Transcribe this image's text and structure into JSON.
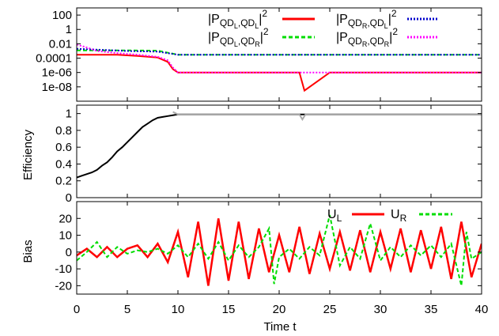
{
  "chart_data": [
    {
      "type": "line",
      "panel": "top",
      "yscale": "log",
      "xlim": [
        0,
        40
      ],
      "ylim": [
        1e-10,
        1000
      ],
      "yticks": [
        {
          "v": 100,
          "label": "100"
        },
        {
          "v": 1,
          "label": "1"
        },
        {
          "v": 0.01,
          "label": "0.01"
        },
        {
          "v": 0.0001,
          "label": "0.0001"
        },
        {
          "v": 1e-06,
          "label": "1e-06"
        },
        {
          "v": 1e-08,
          "label": "1e-08"
        }
      ],
      "legend_position": "top",
      "series": [
        {
          "name": "|P_QDL,QDL|^2",
          "color": "#ff0000",
          "style": "solid",
          "x": [
            0,
            2,
            4,
            6,
            8,
            9,
            9.5,
            10,
            12,
            16,
            20,
            22,
            22.5,
            25,
            30,
            35,
            40
          ],
          "y": [
            0.0003,
            0.0003,
            0.0003,
            0.0002,
            0.00012,
            3e-05,
            3e-06,
            1e-06,
            1e-06,
            1e-06,
            1e-06,
            1e-06,
            3e-09,
            1e-06,
            1e-06,
            1e-06,
            1e-06
          ]
        },
        {
          "name": "|P_QDL,QDR|^2",
          "color": "#00dd00",
          "style": "dashed",
          "x": [
            0,
            5,
            8,
            10,
            15,
            20,
            25,
            30,
            35,
            40
          ],
          "y": [
            0.0012,
            0.0012,
            0.0011,
            0.0003,
            0.0003,
            0.0003,
            0.0003,
            0.0003,
            0.0003,
            0.0003
          ]
        },
        {
          "name": "|P_QDR,QDL|^2",
          "color": "#0000cc",
          "style": "dotted",
          "x": [
            0,
            5,
            8,
            10,
            15,
            20,
            25,
            30,
            35,
            40
          ],
          "y": [
            0.002,
            0.001,
            0.0008,
            0.0003,
            0.0003,
            0.0003,
            0.0003,
            0.0003,
            0.0003,
            0.0003
          ]
        },
        {
          "name": "|P_QDR,QDR|^2",
          "color": "#ff00ff",
          "style": "dotted",
          "x": [
            0,
            1,
            2,
            4,
            6,
            8,
            9,
            9.5,
            10,
            15,
            20,
            25,
            30,
            35,
            40
          ],
          "y": [
            0.008,
            0.003,
            0.001,
            0.0005,
            0.0003,
            0.00015,
            5e-05,
            5e-06,
            1e-06,
            1e-06,
            1e-06,
            1e-06,
            1e-06,
            1e-06,
            1e-06
          ]
        }
      ]
    },
    {
      "type": "line",
      "panel": "middle",
      "ylabel": "Efficiency",
      "xlim": [
        0,
        40
      ],
      "ylim": [
        0,
        1.1
      ],
      "yticks": [
        "0",
        "0.2",
        "0.4",
        "0.6",
        "0.8",
        "1"
      ],
      "series": [
        {
          "color": "#000000",
          "x": [
            0,
            0.5,
            1,
            1.5,
            2,
            2.5,
            3,
            3.5,
            4,
            4.5,
            5,
            5.5,
            6,
            6.5,
            7,
            7.5,
            8,
            8.5,
            9,
            9.5,
            10,
            15,
            20,
            25,
            30,
            35,
            40
          ],
          "y": [
            0.24,
            0.26,
            0.28,
            0.3,
            0.33,
            0.38,
            0.42,
            0.48,
            0.55,
            0.6,
            0.66,
            0.72,
            0.78,
            0.84,
            0.88,
            0.92,
            0.95,
            0.96,
            0.97,
            0.98,
            0.99,
            0.99,
            0.99,
            0.99,
            0.99,
            0.99,
            0.99
          ]
        },
        {
          "color": "#aaaaaa",
          "x": [
            9.5,
            10,
            20,
            22,
            22.3,
            22.6,
            25,
            30,
            35,
            40
          ],
          "y": [
            1.02,
            0.99,
            0.99,
            0.99,
            0.93,
            0.99,
            0.99,
            0.99,
            0.99,
            0.99
          ]
        }
      ]
    },
    {
      "type": "line",
      "panel": "bottom",
      "ylabel": "Bias",
      "xlabel": "Time t",
      "xlim": [
        0,
        40
      ],
      "ylim": [
        -25,
        30
      ],
      "yticks": [
        "-20",
        "-10",
        "0",
        "10",
        "20"
      ],
      "xticks": [
        "0",
        "5",
        "10",
        "15",
        "20",
        "25",
        "30",
        "35",
        "40"
      ],
      "legend_position": "top-right",
      "series": [
        {
          "name": "U_L",
          "color": "#ff0000",
          "style": "solid",
          "x": [
            0,
            1,
            2,
            3,
            4,
            5,
            6,
            7,
            8,
            9,
            10,
            11,
            12,
            13,
            14,
            15,
            16,
            17,
            18,
            19,
            20,
            21,
            22,
            23,
            24,
            25,
            26,
            27,
            28,
            29,
            30,
            31,
            32,
            33,
            34,
            35,
            36,
            37,
            38,
            39,
            40
          ],
          "y": [
            -2,
            2,
            -3,
            3,
            -3,
            2,
            4,
            -3,
            5,
            -6,
            12,
            -15,
            18,
            -20,
            20,
            -17,
            18,
            -16,
            14,
            -12,
            10,
            -12,
            15,
            -13,
            11,
            -10,
            12,
            -11,
            13,
            -12,
            12,
            -10,
            14,
            -12,
            13,
            -10,
            15,
            -16,
            18,
            -15,
            5
          ]
        },
        {
          "name": "U_R",
          "color": "#00dd00",
          "style": "dashed",
          "x": [
            0,
            1,
            2,
            3,
            4,
            5,
            6,
            7,
            8,
            9,
            10,
            11,
            12,
            13,
            14,
            15,
            16,
            17,
            18,
            19,
            19.5,
            20,
            21,
            22,
            23,
            24,
            25,
            26,
            27,
            28,
            29,
            30,
            31,
            32,
            33,
            34,
            35,
            36,
            37,
            38,
            38.5,
            39,
            40
          ],
          "y": [
            -5,
            0,
            6,
            -3,
            3,
            -1,
            1,
            0,
            2,
            -1,
            4,
            -3,
            5,
            -4,
            6,
            -5,
            4,
            -3,
            3,
            14,
            -19,
            -3,
            2,
            -4,
            3,
            -2,
            22,
            -8,
            3,
            -4,
            17,
            -5,
            3,
            -3,
            4,
            -2,
            4,
            -3,
            5,
            -20,
            12,
            -4,
            0
          ]
        }
      ]
    }
  ]
}
